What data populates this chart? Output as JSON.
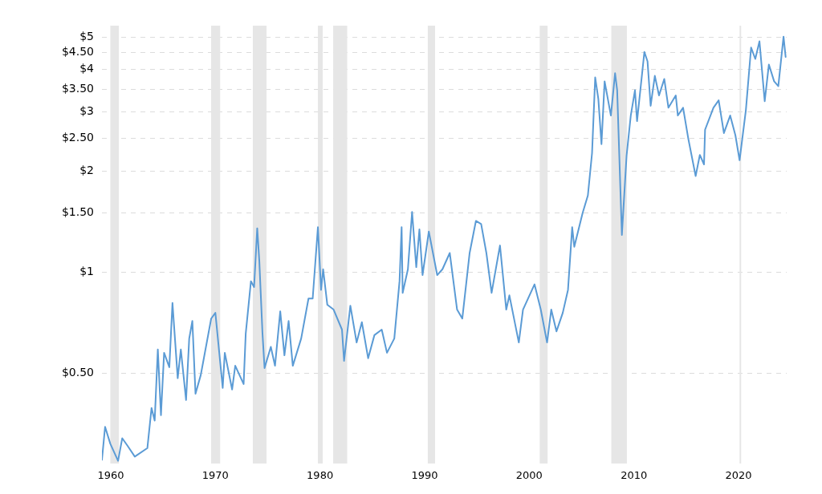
{
  "chart_data": {
    "type": "line",
    "log": "y",
    "grid": "y",
    "legend": false,
    "marker": "none",
    "line_style": "solid",
    "xlim": [
      1959.16,
      2024.6
    ],
    "xticks": [
      1960,
      1970,
      1980,
      1990,
      2000,
      2010,
      2020
    ],
    "ylim": [
      0.27,
      5.4
    ],
    "yticks": [
      {
        "value": 0.5,
        "label": "$0.50"
      },
      {
        "value": 1,
        "label": "$1"
      },
      {
        "value": 1.5,
        "label": "$1.50"
      },
      {
        "value": 2,
        "label": "$2"
      },
      {
        "value": 2.5,
        "label": "$2.50"
      },
      {
        "value": 3,
        "label": "$3"
      },
      {
        "value": 3.5,
        "label": "$3.50"
      },
      {
        "value": 4,
        "label": "$4"
      },
      {
        "value": 4.5,
        "label": "$4.50"
      },
      {
        "value": 5,
        "label": "$5"
      }
    ],
    "bands": [
      {
        "axis": "x",
        "from": 1959.96,
        "to": 1960.78,
        "color": "#e6e6e6"
      },
      {
        "axis": "x",
        "from": 1969.59,
        "to": 1970.46,
        "color": "#e6e6e6"
      },
      {
        "axis": "x",
        "from": 1973.58,
        "to": 1974.89,
        "color": "#e6e6e6"
      },
      {
        "axis": "x",
        "from": 1979.8,
        "to": 1980.26,
        "color": "#e6e6e6"
      },
      {
        "axis": "x",
        "from": 1981.26,
        "to": 1982.6,
        "color": "#e6e6e6"
      },
      {
        "axis": "x",
        "from": 1990.3,
        "to": 1991.0,
        "color": "#e6e6e6"
      },
      {
        "axis": "x",
        "from": 2001.0,
        "to": 2001.75,
        "color": "#e6e6e6"
      },
      {
        "axis": "x",
        "from": 2007.84,
        "to": 2009.33,
        "color": "#e6e6e6"
      },
      {
        "axis": "x",
        "from": 2020.1,
        "to": 2020.25,
        "color": "#e6e6e6"
      }
    ],
    "series": [
      {
        "color": "#5b9bd5",
        "x": [
          1959.16,
          1959.46,
          1959.96,
          1960.7,
          1961.1,
          1961.6,
          1962.3,
          1963.5,
          1963.9,
          1964.2,
          1964.5,
          1964.8,
          1965.1,
          1965.6,
          1965.9,
          1966.4,
          1966.7,
          1967.2,
          1967.5,
          1967.8,
          1968.1,
          1968.6,
          1969.6,
          1970.0,
          1970.7,
          1970.9,
          1971.6,
          1971.9,
          1972.7,
          1972.9,
          1973.4,
          1973.7,
          1974.0,
          1974.2,
          1974.5,
          1974.7,
          1975.3,
          1975.7,
          1976.2,
          1976.6,
          1977.0,
          1977.4,
          1978.2,
          1978.9,
          1979.3,
          1979.8,
          1980.1,
          1980.3,
          1980.7,
          1981.3,
          1982.1,
          1982.3,
          1982.9,
          1983.5,
          1984.0,
          1984.6,
          1985.2,
          1985.9,
          1986.4,
          1987.1,
          1987.6,
          1987.8,
          1987.9,
          1988.4,
          1988.8,
          1989.2,
          1989.5,
          1989.8,
          1990.4,
          1991.2,
          1991.7,
          1992.4,
          1993.1,
          1993.6,
          1994.3,
          1994.9,
          1995.4,
          1995.9,
          1996.4,
          1997.2,
          1997.8,
          1998.1,
          1999.0,
          1999.4,
          2000.5,
          2001.1,
          2001.7,
          2002.1,
          2002.6,
          2003.2,
          2003.7,
          2004.1,
          2004.3,
          2005.1,
          2005.6,
          2006.0,
          2006.3,
          2006.6,
          2006.9,
          2007.2,
          2007.8,
          2008.2,
          2008.4,
          2008.85,
          2009.3,
          2009.7,
          2010.1,
          2010.3,
          2011.0,
          2011.3,
          2011.6,
          2012.0,
          2012.4,
          2012.9,
          2013.3,
          2014.0,
          2014.2,
          2014.7,
          2015.2,
          2015.9,
          2016.3,
          2016.7,
          2016.8,
          2017.6,
          2018.1,
          2018.6,
          2019.2,
          2019.7,
          2020.1,
          2020.7,
          2021.2,
          2021.6,
          2022.0,
          2022.5,
          2022.9,
          2023.4,
          2023.8,
          2024.3,
          2024.5
        ],
        "values": [
          0.277,
          0.347,
          0.309,
          0.275,
          0.321,
          0.305,
          0.283,
          0.3,
          0.395,
          0.362,
          0.589,
          0.376,
          0.576,
          0.522,
          0.81,
          0.484,
          0.589,
          0.417,
          0.635,
          0.716,
          0.435,
          0.494,
          0.728,
          0.757,
          0.453,
          0.576,
          0.448,
          0.527,
          0.465,
          0.656,
          0.94,
          0.903,
          1.35,
          1.08,
          0.66,
          0.519,
          0.6,
          0.527,
          0.765,
          0.566,
          0.716,
          0.527,
          0.635,
          0.835,
          0.835,
          1.36,
          0.886,
          1.02,
          0.8,
          0.774,
          0.675,
          0.545,
          0.795,
          0.618,
          0.71,
          0.555,
          0.65,
          0.675,
          0.576,
          0.635,
          0.94,
          1.36,
          0.868,
          1.02,
          1.51,
          1.035,
          1.34,
          0.98,
          1.32,
          0.98,
          1.02,
          1.14,
          0.774,
          0.728,
          1.14,
          1.42,
          1.39,
          1.14,
          0.868,
          1.2,
          0.774,
          0.853,
          0.618,
          0.774,
          0.92,
          0.774,
          0.618,
          0.774,
          0.667,
          0.757,
          0.886,
          1.36,
          1.19,
          1.5,
          1.69,
          2.26,
          3.79,
          3.27,
          2.4,
          3.69,
          2.92,
          3.9,
          3.47,
          1.29,
          2.22,
          2.92,
          3.47,
          2.81,
          4.51,
          4.23,
          3.12,
          3.83,
          3.35,
          3.75,
          3.08,
          3.35,
          2.92,
          3.08,
          2.49,
          1.93,
          2.23,
          2.09,
          2.65,
          3.08,
          3.24,
          2.59,
          2.92,
          2.55,
          2.15,
          3.03,
          4.65,
          4.3,
          4.85,
          3.22,
          4.14,
          3.69,
          3.57,
          5.01,
          4.36
        ]
      }
    ]
  }
}
